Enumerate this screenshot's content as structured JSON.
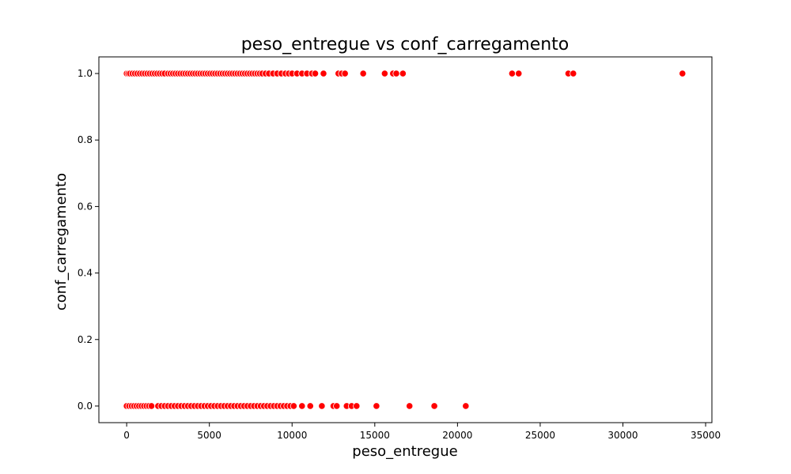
{
  "chart_data": {
    "type": "scatter",
    "title": "peso_entregue vs conf_carregamento",
    "xlabel": "peso_entregue",
    "ylabel": "conf_carregamento",
    "xlim": [
      -1680,
      35380
    ],
    "ylim": [
      -0.05,
      1.05
    ],
    "xticks": [
      0,
      5000,
      10000,
      15000,
      20000,
      25000,
      30000,
      35000
    ],
    "xtick_labels": [
      "0",
      "5000",
      "10000",
      "15000",
      "20000",
      "25000",
      "30000",
      "35000"
    ],
    "yticks": [
      0.0,
      0.2,
      0.4,
      0.6,
      0.8,
      1.0
    ],
    "ytick_labels": [
      "0.0",
      "0.2",
      "0.4",
      "0.6",
      "0.8",
      "1.0"
    ],
    "grid": false,
    "marker_color": "#ff0000",
    "marker_edge_color": "#ffffff",
    "series": [
      {
        "values_note_x": "peso_entregue",
        "x": [
          0,
          100,
          200,
          350,
          500,
          650,
          800,
          950,
          1100,
          1250,
          1400,
          1550,
          1700,
          1850,
          2000,
          2150,
          2300,
          2500,
          2650,
          2800,
          2950,
          3100,
          3250,
          3400,
          3550,
          3700,
          3850,
          4000,
          4150,
          4300,
          4450,
          4600,
          4750,
          4900,
          5050,
          5200,
          5350,
          5500,
          5650,
          5800,
          5950,
          6100,
          6250,
          6400,
          6550,
          6700,
          6850,
          7000,
          7150,
          7300,
          7450,
          7600,
          7750,
          7900,
          8050,
          8200,
          8400,
          8600,
          8850,
          9100,
          9350,
          9600,
          9800,
          10000,
          10300,
          10600,
          10900,
          11200,
          11400,
          11900,
          12800,
          13000,
          13200,
          14300,
          15600,
          16100,
          16300,
          16700,
          23300,
          23700,
          26700,
          27000,
          33600,
          0,
          150,
          300,
          450,
          600,
          750,
          900,
          1050,
          1200,
          1350,
          1500,
          1900,
          2100,
          2300,
          2500,
          2700,
          2900,
          3100,
          3300,
          3500,
          3700,
          3900,
          4100,
          4300,
          4500,
          4700,
          4900,
          5100,
          5300,
          5500,
          5700,
          5900,
          6100,
          6300,
          6500,
          6700,
          6900,
          7100,
          7300,
          7500,
          7700,
          7900,
          8100,
          8300,
          8500,
          8700,
          8900,
          9100,
          9300,
          9500,
          9700,
          9900,
          10100,
          10600,
          11100,
          11800,
          12500,
          12700,
          13300,
          13600,
          13900,
          15100,
          17100,
          18600,
          20500
        ],
        "y": [
          1,
          1,
          1,
          1,
          1,
          1,
          1,
          1,
          1,
          1,
          1,
          1,
          1,
          1,
          1,
          1,
          1,
          1,
          1,
          1,
          1,
          1,
          1,
          1,
          1,
          1,
          1,
          1,
          1,
          1,
          1,
          1,
          1,
          1,
          1,
          1,
          1,
          1,
          1,
          1,
          1,
          1,
          1,
          1,
          1,
          1,
          1,
          1,
          1,
          1,
          1,
          1,
          1,
          1,
          1,
          1,
          1,
          1,
          1,
          1,
          1,
          1,
          1,
          1,
          1,
          1,
          1,
          1,
          1,
          1,
          1,
          1,
          1,
          1,
          1,
          1,
          1,
          1,
          1,
          1,
          1,
          1,
          1,
          0,
          0,
          0,
          0,
          0,
          0,
          0,
          0,
          0,
          0,
          0,
          0,
          0,
          0,
          0,
          0,
          0,
          0,
          0,
          0,
          0,
          0,
          0,
          0,
          0,
          0,
          0,
          0,
          0,
          0,
          0,
          0,
          0,
          0,
          0,
          0,
          0,
          0,
          0,
          0,
          0,
          0,
          0,
          0,
          0,
          0,
          0,
          0,
          0,
          0,
          0,
          0,
          0,
          0,
          0,
          0,
          0,
          0,
          0,
          0,
          0,
          0,
          0,
          0,
          0
        ]
      }
    ]
  }
}
